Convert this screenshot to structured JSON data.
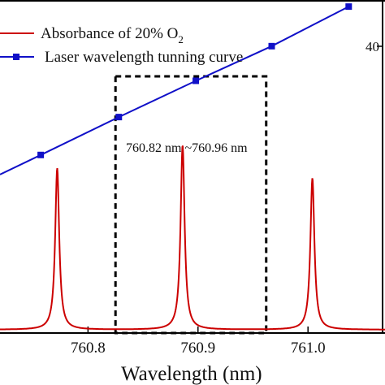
{
  "chart_data": {
    "type": "line",
    "xlabel": "Wavelength (nm)",
    "xlim": [
      760.72,
      761.07
    ],
    "x_ticks": [
      "760.8",
      "760.9",
      "761.0"
    ],
    "x_tick_values": [
      760.8,
      760.9,
      761.0
    ],
    "right_axis_tick_label": "40",
    "legend": {
      "placement": "top-left",
      "entries": [
        {
          "label": "Absorbance of 20% O",
          "subscript": "2",
          "color": "#cc0000",
          "marker": "none"
        },
        {
          "label": "Laser wavelength tunning curve",
          "color": "#1010c8",
          "marker": "square"
        }
      ]
    },
    "annotation": {
      "text": "760.82 nm ~760.96 nm",
      "x_range": [
        760.825,
        760.962
      ]
    },
    "series": [
      {
        "name": "Absorbance of 20% O2",
        "color": "#cc0000",
        "kind": "lorentzian_peaks",
        "baseline": 0.0,
        "peaks": [
          {
            "x": 760.772,
            "height": 0.49
          },
          {
            "x": 760.886,
            "height": 0.56
          },
          {
            "x": 761.004,
            "height": 0.46
          }
        ],
        "half_width": 0.0022,
        "ylim": [
          -0.01,
          1.0
        ]
      },
      {
        "name": "Laser wavelength tunning curve",
        "color": "#1010c8",
        "kind": "line_markers",
        "x": [
          760.757,
          760.828,
          760.898,
          760.967,
          761.037
        ],
        "y": [
          0.53,
          0.645,
          0.755,
          0.86,
          0.98
        ],
        "ylim": [
          -0.01,
          1.0
        ]
      }
    ]
  }
}
